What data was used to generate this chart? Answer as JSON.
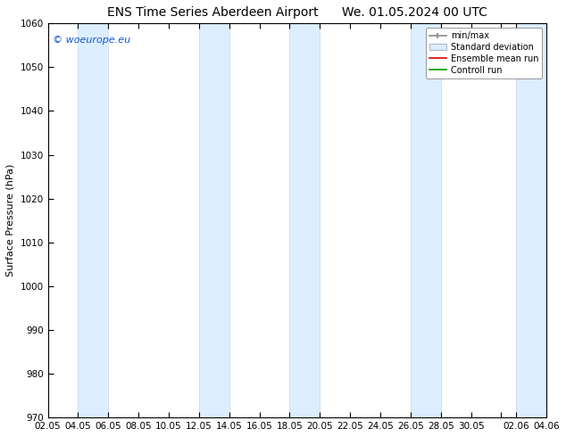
{
  "title_left": "ENS Time Series Aberdeen Airport",
  "title_right": "We. 01.05.2024 00 UTC",
  "ylabel": "Surface Pressure (hPa)",
  "ylim": [
    970,
    1060
  ],
  "yticks": [
    970,
    980,
    990,
    1000,
    1010,
    1020,
    1030,
    1040,
    1050,
    1060
  ],
  "xtick_labels": [
    "02.05",
    "04.05",
    "06.05",
    "08.05",
    "10.05",
    "12.05",
    "14.05",
    "16.05",
    "18.05",
    "20.05",
    "22.05",
    "24.05",
    "26.05",
    "28.05",
    "30.05",
    "",
    "02.06",
    "04.06"
  ],
  "copyright": "© woeurope.eu",
  "bg_color": "#ffffff",
  "band_color_light": "#dceeff",
  "band_color_edge": "#c0d8f0",
  "legend_entries": [
    "min/max",
    "Standard deviation",
    "Ensemble mean run",
    "Controll run"
  ],
  "title_fontsize": 10,
  "label_fontsize": 8,
  "tick_fontsize": 7.5
}
